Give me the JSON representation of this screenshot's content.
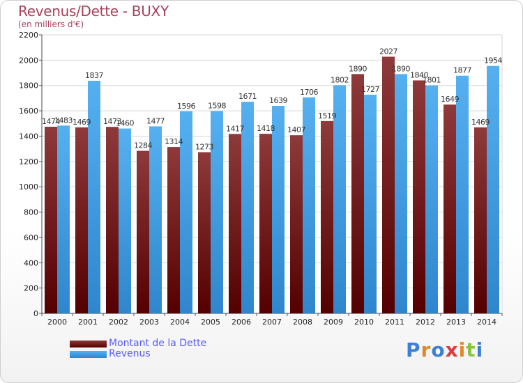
{
  "chart_data": {
    "type": "bar",
    "title": "Revenus/Dette - BUXY",
    "subtitle": "(en milliers d'€)",
    "categories": [
      "2000",
      "2001",
      "2002",
      "2003",
      "2004",
      "2005",
      "2006",
      "2007",
      "2008",
      "2009",
      "2010",
      "2011",
      "2012",
      "2013",
      "2014"
    ],
    "series": [
      {
        "name": "Montant de la Dette",
        "color": "#7a1c1c",
        "values": [
          1474,
          1469,
          1473,
          1284,
          1314,
          1273,
          1417,
          1418,
          1407,
          1519,
          1890,
          2027,
          1840,
          1649,
          1469
        ],
        "labels": [
          "1474",
          "1469",
          "1473",
          "1284",
          "1314",
          "1273",
          "1417",
          "1418",
          "1407",
          "1519",
          "1890",
          "2027",
          "1840",
          "1649",
          "1469"
        ]
      },
      {
        "name": "Revenus",
        "color": "#45a0e6",
        "values": [
          1483,
          1837,
          1460,
          1477,
          1596,
          1598,
          1671,
          1639,
          1706,
          1802,
          1727,
          1890,
          1801,
          1877,
          1954
        ],
        "labels": [
          "1483",
          "1837",
          "1460",
          "1477",
          "1596",
          "1598",
          "1671",
          "1639",
          "1706",
          "1802",
          "1727",
          "1890",
          "1801",
          "1877",
          "1954"
        ]
      }
    ],
    "ylim": [
      0,
      2200
    ],
    "yticks": [
      0,
      200,
      400,
      600,
      800,
      1000,
      1200,
      1400,
      1600,
      1800,
      2000,
      2200
    ],
    "grid": true,
    "legend_position": "bottom-left"
  },
  "logo": {
    "letters": [
      "P",
      "r",
      "o",
      "x",
      "i",
      "t",
      "i"
    ],
    "colors": [
      "#3d7fd6",
      "#e0892c",
      "#3d7fd6",
      "#d63d3d",
      "#e0892c",
      "#8ac43d",
      "#3d7fd6"
    ]
  }
}
